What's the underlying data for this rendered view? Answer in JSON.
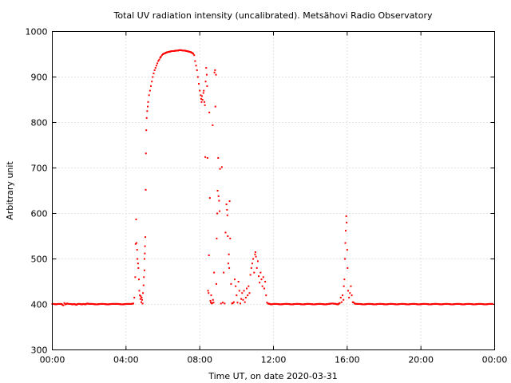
{
  "chart_data": {
    "type": "scatter",
    "title": "Total UV radiation intensity (uncalibrated). Metsähovi Radio Observatory",
    "xlabel": "Time UT, on date 2020-03-31",
    "ylabel": "Arbitrary unit",
    "xlim": [
      0,
      24
    ],
    "ylim": [
      300,
      1000
    ],
    "x_unit": "hours UT",
    "x_ticks": [
      0,
      4,
      8,
      12,
      16,
      20,
      24
    ],
    "x_tick_labels": [
      "00:00",
      "04:00",
      "08:00",
      "12:00",
      "16:00",
      "20:00",
      "00:00"
    ],
    "y_ticks": [
      300,
      400,
      500,
      600,
      700,
      800,
      900,
      1000
    ],
    "y_tick_labels": [
      "300",
      "400",
      "500",
      "600",
      "700",
      "800",
      "900",
      "1000"
    ],
    "grid": true,
    "legend": "none",
    "marker_color": "#ff0000",
    "series": [
      {
        "points": [
          [
            0.0,
            401
          ],
          [
            0.1,
            401
          ],
          [
            0.2,
            400
          ],
          [
            0.3,
            401
          ],
          [
            0.4,
            401
          ],
          [
            0.5,
            401
          ],
          [
            0.6,
            398
          ],
          [
            0.65,
            403
          ],
          [
            0.7,
            400
          ],
          [
            0.8,
            402
          ],
          [
            0.9,
            401
          ],
          [
            1.0,
            401
          ],
          [
            1.1,
            400
          ],
          [
            1.2,
            401
          ],
          [
            1.3,
            399
          ],
          [
            1.4,
            401
          ],
          [
            1.5,
            401
          ],
          [
            1.6,
            400
          ],
          [
            1.7,
            401
          ],
          [
            1.8,
            400
          ],
          [
            1.9,
            402
          ],
          [
            2.0,
            401
          ],
          [
            2.2,
            401
          ],
          [
            2.4,
            400
          ],
          [
            2.6,
            401
          ],
          [
            2.8,
            401
          ],
          [
            3.0,
            400
          ],
          [
            3.2,
            401
          ],
          [
            3.4,
            401
          ],
          [
            3.6,
            401
          ],
          [
            3.8,
            400
          ],
          [
            4.0,
            401
          ],
          [
            4.2,
            401
          ],
          [
            4.3,
            401
          ],
          [
            4.4,
            402
          ],
          [
            4.45,
            415
          ],
          [
            4.5,
            460
          ],
          [
            4.52,
            533
          ],
          [
            4.55,
            587
          ],
          [
            4.57,
            535
          ],
          [
            4.6,
            520
          ],
          [
            4.62,
            500
          ],
          [
            4.65,
            490
          ],
          [
            4.67,
            480
          ],
          [
            4.7,
            455
          ],
          [
            4.72,
            430
          ],
          [
            4.75,
            420
          ],
          [
            4.78,
            412
          ],
          [
            4.8,
            418
          ],
          [
            4.83,
            405
          ],
          [
            4.85,
            415
          ],
          [
            4.87,
            410
          ],
          [
            4.9,
            402
          ],
          [
            4.92,
            425
          ],
          [
            4.95,
            442
          ],
          [
            4.97,
            460
          ],
          [
            5.0,
            475
          ],
          [
            5.0,
            500
          ],
          [
            5.02,
            512
          ],
          [
            5.03,
            528
          ],
          [
            5.05,
            548
          ],
          [
            5.07,
            652
          ],
          [
            5.08,
            732
          ],
          [
            5.1,
            783
          ],
          [
            5.12,
            810
          ],
          [
            5.15,
            825
          ],
          [
            5.18,
            835
          ],
          [
            5.2,
            845
          ],
          [
            5.25,
            860
          ],
          [
            5.3,
            870
          ],
          [
            5.35,
            880
          ],
          [
            5.4,
            890
          ],
          [
            5.45,
            900
          ],
          [
            5.5,
            908
          ],
          [
            5.55,
            915
          ],
          [
            5.6,
            920
          ],
          [
            5.65,
            925
          ],
          [
            5.7,
            930
          ],
          [
            5.75,
            935
          ],
          [
            5.8,
            938
          ],
          [
            5.85,
            942
          ],
          [
            5.9,
            945
          ],
          [
            5.95,
            948
          ],
          [
            6.0,
            950
          ],
          [
            6.1,
            952
          ],
          [
            6.2,
            954
          ],
          [
            6.3,
            955
          ],
          [
            6.4,
            956
          ],
          [
            6.5,
            957
          ],
          [
            6.6,
            957
          ],
          [
            6.7,
            958
          ],
          [
            6.8,
            958
          ],
          [
            6.9,
            959
          ],
          [
            7.0,
            959
          ],
          [
            7.1,
            958
          ],
          [
            7.2,
            958
          ],
          [
            7.3,
            957
          ],
          [
            7.4,
            956
          ],
          [
            7.5,
            955
          ],
          [
            7.6,
            953
          ],
          [
            7.65,
            951
          ],
          [
            7.7,
            948
          ],
          [
            7.75,
            935
          ],
          [
            7.8,
            925
          ],
          [
            7.85,
            915
          ],
          [
            7.9,
            900
          ],
          [
            7.95,
            885
          ],
          [
            8.0,
            870
          ],
          [
            8.05,
            860
          ],
          [
            8.08,
            852
          ],
          [
            8.1,
            845
          ],
          [
            8.12,
            858
          ],
          [
            8.15,
            850
          ],
          [
            8.2,
            865
          ],
          [
            8.22,
            870
          ],
          [
            8.25,
            845
          ],
          [
            8.28,
            838
          ],
          [
            8.3,
            724
          ],
          [
            8.32,
            890
          ],
          [
            8.35,
            920
          ],
          [
            8.38,
            905
          ],
          [
            8.4,
            880
          ],
          [
            8.42,
            722
          ],
          [
            8.45,
            430
          ],
          [
            8.48,
            425
          ],
          [
            8.5,
            508
          ],
          [
            8.52,
            822
          ],
          [
            8.55,
            634
          ],
          [
            8.58,
            408
          ],
          [
            8.6,
            404
          ],
          [
            8.62,
            420
          ],
          [
            8.65,
            402
          ],
          [
            8.68,
            403
          ],
          [
            8.7,
            794
          ],
          [
            8.72,
            410
          ],
          [
            8.75,
            404
          ],
          [
            8.78,
            470
          ],
          [
            8.8,
            910
          ],
          [
            8.83,
            915
          ],
          [
            8.85,
            835
          ],
          [
            8.88,
            905
          ],
          [
            8.9,
            445
          ],
          [
            8.92,
            545
          ],
          [
            8.95,
            600
          ],
          [
            8.97,
            650
          ],
          [
            9.0,
            722
          ],
          [
            9.02,
            638
          ],
          [
            9.05,
            628
          ],
          [
            9.08,
            605
          ],
          [
            9.1,
            698
          ],
          [
            9.15,
            402
          ],
          [
            9.2,
            702
          ],
          [
            9.25,
            404
          ],
          [
            9.3,
            470
          ],
          [
            9.35,
            402
          ],
          [
            9.4,
            558
          ],
          [
            9.45,
            620
          ],
          [
            9.48,
            608
          ],
          [
            9.5,
            596
          ],
          [
            9.52,
            550
          ],
          [
            9.55,
            490
          ],
          [
            9.58,
            510
          ],
          [
            9.6,
            480
          ],
          [
            9.62,
            627
          ],
          [
            9.65,
            545
          ],
          [
            9.7,
            445
          ],
          [
            9.75,
            402
          ],
          [
            9.8,
            403
          ],
          [
            9.85,
            405
          ],
          [
            9.9,
            455
          ],
          [
            9.95,
            440
          ],
          [
            10.0,
            420
          ],
          [
            10.05,
            404
          ],
          [
            10.1,
            450
          ],
          [
            10.15,
            430
          ],
          [
            10.2,
            402
          ],
          [
            10.25,
            412
          ],
          [
            10.3,
            425
          ],
          [
            10.35,
            410
          ],
          [
            10.4,
            430
          ],
          [
            10.45,
            405
          ],
          [
            10.5,
            415
          ],
          [
            10.55,
            435
          ],
          [
            10.6,
            420
          ],
          [
            10.65,
            440
          ],
          [
            10.7,
            425
          ],
          [
            10.75,
            465
          ],
          [
            10.8,
            480
          ],
          [
            10.85,
            490
          ],
          [
            10.9,
            500
          ],
          [
            10.95,
            470
          ],
          [
            11.0,
            510
          ],
          [
            11.02,
            515
          ],
          [
            11.05,
            505
          ],
          [
            11.1,
            480
          ],
          [
            11.15,
            495
          ],
          [
            11.2,
            462
          ],
          [
            11.25,
            448
          ],
          [
            11.3,
            470
          ],
          [
            11.35,
            455
          ],
          [
            11.4,
            440
          ],
          [
            11.45,
            460
          ],
          [
            11.5,
            435
          ],
          [
            11.55,
            450
          ],
          [
            11.6,
            420
          ],
          [
            11.65,
            404
          ],
          [
            11.7,
            402
          ],
          [
            11.8,
            401
          ],
          [
            11.9,
            400
          ],
          [
            12.0,
            401
          ],
          [
            12.2,
            401
          ],
          [
            12.4,
            400
          ],
          [
            12.6,
            401
          ],
          [
            12.8,
            401
          ],
          [
            13.0,
            400
          ],
          [
            13.2,
            401
          ],
          [
            13.4,
            401
          ],
          [
            13.6,
            400
          ],
          [
            13.8,
            401
          ],
          [
            14.0,
            401
          ],
          [
            14.2,
            400
          ],
          [
            14.4,
            401
          ],
          [
            14.6,
            401
          ],
          [
            14.8,
            400
          ],
          [
            15.0,
            401
          ],
          [
            15.2,
            402
          ],
          [
            15.4,
            401
          ],
          [
            15.5,
            400
          ],
          [
            15.6,
            403
          ],
          [
            15.65,
            415
          ],
          [
            15.7,
            405
          ],
          [
            15.75,
            420
          ],
          [
            15.8,
            410
          ],
          [
            15.82,
            440
          ],
          [
            15.85,
            455
          ],
          [
            15.88,
            500
          ],
          [
            15.9,
            535
          ],
          [
            15.92,
            562
          ],
          [
            15.95,
            594
          ],
          [
            15.97,
            580
          ],
          [
            16.0,
            520
          ],
          [
            16.02,
            480
          ],
          [
            16.05,
            430
          ],
          [
            16.1,
            415
          ],
          [
            16.15,
            425
          ],
          [
            16.2,
            440
          ],
          [
            16.25,
            420
          ],
          [
            16.3,
            405
          ],
          [
            16.35,
            404
          ],
          [
            16.4,
            402
          ],
          [
            16.5,
            401
          ],
          [
            16.7,
            401
          ],
          [
            16.9,
            400
          ],
          [
            17.1,
            401
          ],
          [
            17.3,
            401
          ],
          [
            17.5,
            400
          ],
          [
            17.7,
            401
          ],
          [
            17.9,
            401
          ],
          [
            18.1,
            400
          ],
          [
            18.3,
            401
          ],
          [
            18.5,
            401
          ],
          [
            18.7,
            400
          ],
          [
            18.9,
            401
          ],
          [
            19.1,
            401
          ],
          [
            19.3,
            400
          ],
          [
            19.5,
            401
          ],
          [
            19.7,
            401
          ],
          [
            19.9,
            400
          ],
          [
            20.1,
            401
          ],
          [
            20.3,
            401
          ],
          [
            20.5,
            400
          ],
          [
            20.7,
            401
          ],
          [
            20.9,
            401
          ],
          [
            21.1,
            400
          ],
          [
            21.3,
            401
          ],
          [
            21.5,
            401
          ],
          [
            21.7,
            400
          ],
          [
            21.9,
            401
          ],
          [
            22.1,
            401
          ],
          [
            22.3,
            400
          ],
          [
            22.5,
            401
          ],
          [
            22.7,
            401
          ],
          [
            22.9,
            400
          ],
          [
            23.1,
            401
          ],
          [
            23.3,
            401
          ],
          [
            23.5,
            400
          ],
          [
            23.7,
            401
          ],
          [
            23.9,
            401
          ]
        ]
      }
    ]
  }
}
